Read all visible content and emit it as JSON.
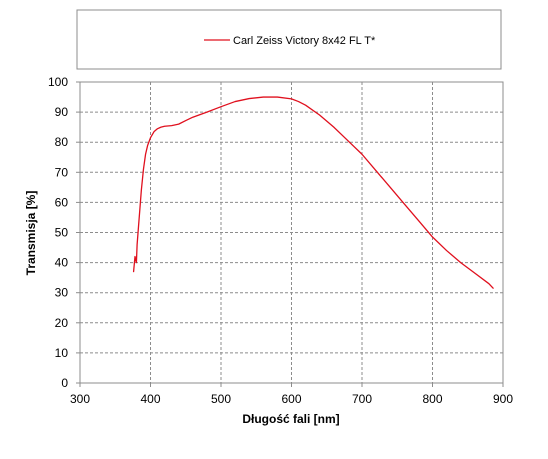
{
  "chart_data": {
    "type": "line",
    "title": "",
    "xlabel": "Długość fali [nm]",
    "ylabel": "Transmisja [%]",
    "xlim": [
      300,
      900
    ],
    "ylim": [
      0,
      100
    ],
    "xticks": [
      300,
      400,
      500,
      600,
      700,
      800,
      900
    ],
    "yticks": [
      0,
      10,
      20,
      30,
      40,
      50,
      60,
      70,
      80,
      90,
      100
    ],
    "grid": true,
    "legend_position": "top",
    "series": [
      {
        "name": "Carl Zeiss Victory 8x42 FL T*",
        "color": "#e0101e",
        "x": [
          376,
          378,
          380,
          381,
          383,
          385,
          387,
          390,
          393,
          396,
          400,
          405,
          410,
          415,
          420,
          430,
          440,
          450,
          460,
          480,
          500,
          520,
          540,
          560,
          580,
          600,
          610,
          620,
          640,
          660,
          680,
          700,
          720,
          740,
          760,
          780,
          800,
          820,
          840,
          860,
          880,
          886
        ],
        "y": [
          37.0,
          42.0,
          40.0,
          46.0,
          52.0,
          58.0,
          64.0,
          71.0,
          76.0,
          79.0,
          81.5,
          83.5,
          84.5,
          85.0,
          85.3,
          85.5,
          86.0,
          87.2,
          88.3,
          90.0,
          91.8,
          93.5,
          94.5,
          95.0,
          95.0,
          94.4,
          93.5,
          92.3,
          89.0,
          85.0,
          80.5,
          76.0,
          70.5,
          65.0,
          59.5,
          54.0,
          48.5,
          44.0,
          40.0,
          36.5,
          33.0,
          31.5
        ]
      }
    ]
  }
}
